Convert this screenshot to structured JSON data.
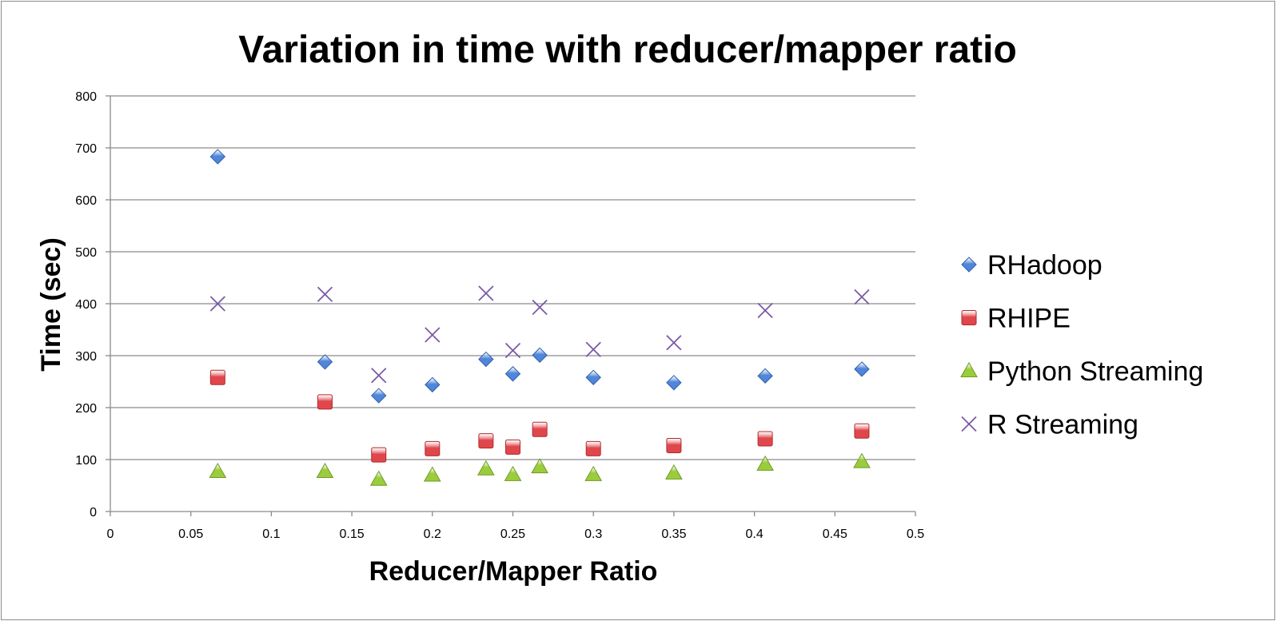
{
  "chart_data": {
    "type": "scatter",
    "title": "Variation in time with reducer/mapper ratio",
    "xlabel": "Reducer/Mapper Ratio",
    "ylabel": "Time (sec)",
    "xlim": [
      0,
      0.5
    ],
    "ylim": [
      0,
      800
    ],
    "x_ticks": [
      0,
      0.05,
      0.1,
      0.15,
      0.2,
      0.25,
      0.3,
      0.35,
      0.4,
      0.45,
      0.5
    ],
    "x_tick_labels": [
      "0",
      "0.05",
      "0.1",
      "0.15",
      "0.2",
      "0.25",
      "0.3",
      "0.35",
      "0.4",
      "0.45",
      "0.5"
    ],
    "y_ticks": [
      0,
      100,
      200,
      300,
      400,
      500,
      600,
      700,
      800
    ],
    "y_tick_labels": [
      "0",
      "100",
      "200",
      "300",
      "400",
      "500",
      "600",
      "700",
      "800"
    ],
    "grid": "horizontal",
    "legend_position": "right",
    "series": [
      {
        "name": "RHadoop",
        "marker": "diamond",
        "color": "#4f86d9",
        "points": [
          [
            0.0667,
            683
          ],
          [
            0.1333,
            288
          ],
          [
            0.1667,
            223
          ],
          [
            0.2,
            244
          ],
          [
            0.2333,
            293
          ],
          [
            0.25,
            265
          ],
          [
            0.2667,
            301
          ],
          [
            0.3,
            258
          ],
          [
            0.35,
            248
          ],
          [
            0.4067,
            261
          ],
          [
            0.4667,
            274
          ]
        ]
      },
      {
        "name": "RHIPE",
        "marker": "square",
        "color": "#e0474c",
        "points": [
          [
            0.0667,
            258
          ],
          [
            0.1333,
            211
          ],
          [
            0.1667,
            109
          ],
          [
            0.2,
            121
          ],
          [
            0.2333,
            136
          ],
          [
            0.25,
            124
          ],
          [
            0.2667,
            158
          ],
          [
            0.3,
            121
          ],
          [
            0.35,
            127
          ],
          [
            0.4067,
            140
          ],
          [
            0.4667,
            155
          ]
        ]
      },
      {
        "name": "Python Streaming",
        "marker": "triangle",
        "color": "#9bcc3c",
        "points": [
          [
            0.0667,
            77
          ],
          [
            0.1333,
            77
          ],
          [
            0.1667,
            62
          ],
          [
            0.2,
            70
          ],
          [
            0.2333,
            82
          ],
          [
            0.25,
            71
          ],
          [
            0.2667,
            86
          ],
          [
            0.3,
            71
          ],
          [
            0.35,
            74
          ],
          [
            0.4067,
            91
          ],
          [
            0.4667,
            96
          ]
        ]
      },
      {
        "name": "R Streaming",
        "marker": "x",
        "color": "#7b5aa6",
        "points": [
          [
            0.0667,
            400
          ],
          [
            0.1333,
            418
          ],
          [
            0.1667,
            262
          ],
          [
            0.2,
            340
          ],
          [
            0.2333,
            420
          ],
          [
            0.25,
            310
          ],
          [
            0.2667,
            393
          ],
          [
            0.3,
            312
          ],
          [
            0.35,
            325
          ],
          [
            0.4067,
            387
          ],
          [
            0.4667,
            413
          ]
        ]
      }
    ]
  }
}
